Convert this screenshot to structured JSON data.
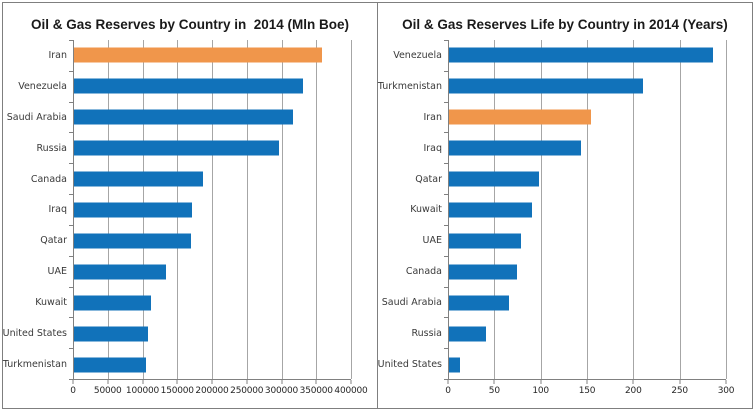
{
  "page": {
    "background": "#ffffff",
    "panel_border": "#7f7f7f"
  },
  "colors": {
    "bar_blue": "#1172BA",
    "bar_orange": "#F0964B",
    "gridline": "#a6a6a6",
    "axis_line": "#808080",
    "title_text": "#1a1a1a",
    "label_text": "#3a3a3a"
  },
  "chart_data": [
    {
      "type": "bar",
      "orientation": "horizontal",
      "title": "Oil & Gas Reserves by Country in  2014 (Mln Boe)",
      "categories": [
        "Iran",
        "Venezuela",
        "Saudi Arabia",
        "Russia",
        "Canada",
        "Iraq",
        "Qatar",
        "UAE",
        "Kuwait",
        "United States",
        "Turkmenistan"
      ],
      "values": [
        357000,
        330000,
        315000,
        295000,
        185000,
        170000,
        169000,
        133000,
        111000,
        106000,
        103000
      ],
      "highlight_index": 0,
      "bar_color": "#1172BA",
      "highlight_color": "#F0964B",
      "xlim": [
        0,
        400000
      ],
      "xticks": [
        0,
        50000,
        100000,
        150000,
        200000,
        250000,
        300000,
        350000,
        400000
      ],
      "xlabel": "",
      "ylabel": "",
      "grid": "vertical-major",
      "legend": "none"
    },
    {
      "type": "bar",
      "orientation": "horizontal",
      "title": "Oil & Gas Reserves Life by Country in 2014 (Years)",
      "categories": [
        "Venezuela",
        "Turkmenistan",
        "Iran",
        "Iraq",
        "Qatar",
        "Kuwait",
        "UAE",
        "Canada",
        "Saudi Arabia",
        "Russia",
        "United States"
      ],
      "values": [
        285,
        209,
        153,
        142,
        97,
        90,
        78,
        73,
        65,
        40,
        12
      ],
      "highlight_index": 2,
      "bar_color": "#1172BA",
      "highlight_color": "#F0964B",
      "xlim": [
        0,
        300
      ],
      "xticks": [
        0,
        50,
        100,
        150,
        200,
        250,
        300
      ],
      "xlabel": "",
      "ylabel": "",
      "grid": "vertical-major",
      "legend": "none"
    }
  ]
}
